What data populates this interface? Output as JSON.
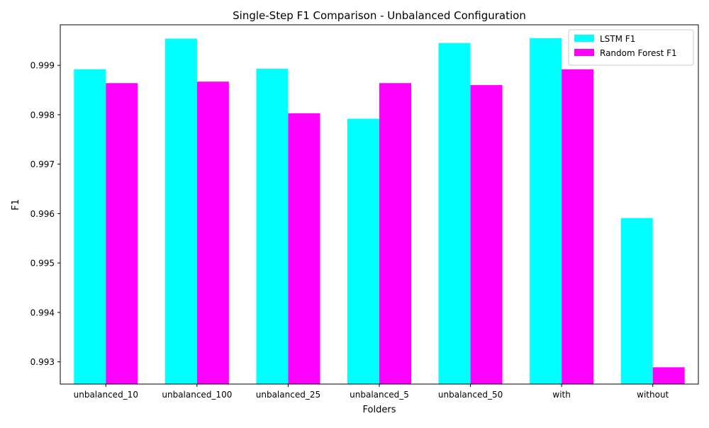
{
  "chart_data": {
    "type": "bar",
    "title": "Single-Step F1 Comparison - Unbalanced Configuration",
    "xlabel": "Folders",
    "ylabel": "F1",
    "categories": [
      "unbalanced_10",
      "unbalanced_100",
      "unbalanced_25",
      "unbalanced_5",
      "unbalanced_50",
      "with",
      "without"
    ],
    "series": [
      {
        "name": "LSTM F1",
        "color": "#00ffff",
        "values": [
          0.99892,
          0.99954,
          0.99893,
          0.99792,
          0.99945,
          0.99955,
          0.99591
        ]
      },
      {
        "name": "Random Forest F1",
        "color": "#ff00ff",
        "values": [
          0.99864,
          0.99867,
          0.99803,
          0.99864,
          0.9986,
          0.99892,
          0.99289
        ]
      }
    ],
    "ylim": [
      0.99255,
      0.99982
    ],
    "yticks": [
      0.993,
      0.994,
      0.995,
      0.996,
      0.997,
      0.998,
      0.999
    ],
    "ytick_labels": [
      "0.993",
      "0.994",
      "0.995",
      "0.996",
      "0.997",
      "0.998",
      "0.999"
    ],
    "grid": false,
    "legend_position": "top-right"
  }
}
